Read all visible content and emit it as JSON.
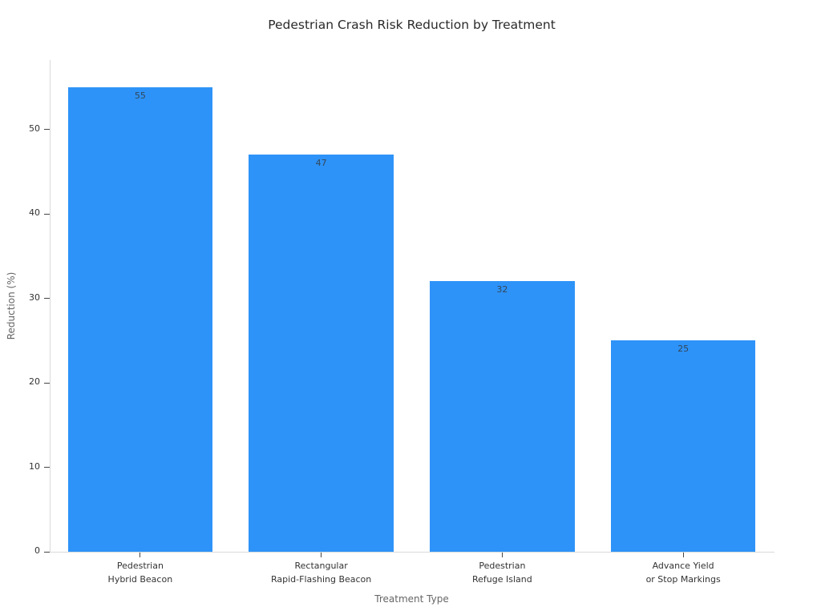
{
  "chart_data": {
    "type": "bar",
    "title": "Pedestrian Crash Risk Reduction by Treatment",
    "xlabel": "Treatment Type",
    "ylabel": "Reduction (%)",
    "categories": [
      "Pedestrian\nHybrid Beacon",
      "Rectangular\nRapid-Flashing Beacon",
      "Pedestrian\nRefuge Island",
      "Advance Yield\nor Stop Markings"
    ],
    "values": [
      55,
      47,
      32,
      25
    ],
    "yticks": [
      0,
      10,
      20,
      30,
      40,
      50
    ],
    "ylim": [
      0,
      58.2
    ],
    "grid": false,
    "legend_position": "none",
    "bar_width_fraction": 0.8,
    "colors": {
      "bar": "#2e93f8",
      "value_label": "#33475a",
      "spine": "#d9d9d9",
      "tick": "#444444",
      "tick_label": "#333333",
      "axis_label": "#666666",
      "title": "#2a2a2a",
      "background": "#ffffff"
    }
  }
}
